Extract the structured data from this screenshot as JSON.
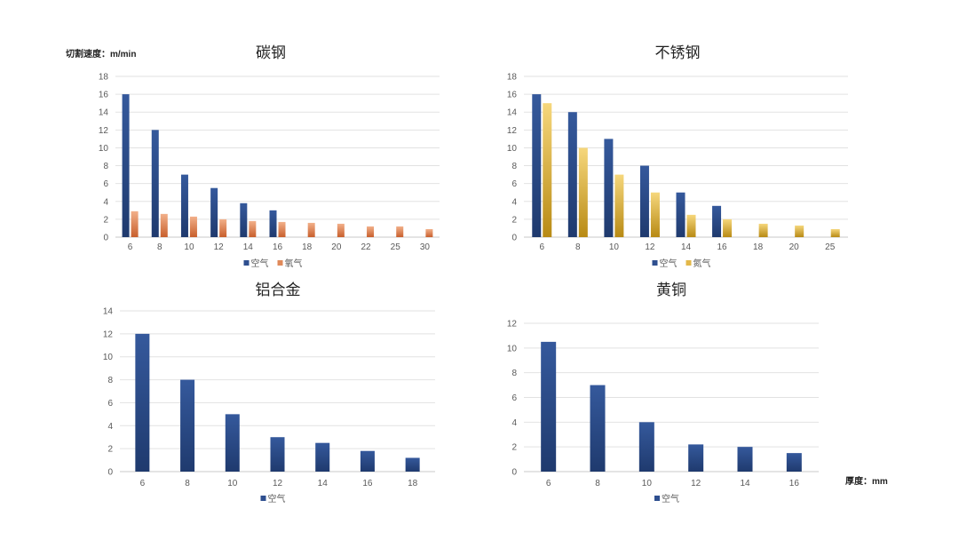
{
  "labels": {
    "speed_unit": "切割速度：m/min",
    "thickness_unit": "厚度：mm"
  },
  "colors": {
    "air": "#2e4f8f",
    "oxygen": "#e08a5a",
    "nitrogen": "#e3b84a"
  },
  "chart_data": [
    {
      "type": "bar",
      "title": "碳钢",
      "categories": [
        "6",
        "8",
        "10",
        "12",
        "14",
        "16",
        "18",
        "20",
        "22",
        "25",
        "30"
      ],
      "series": [
        {
          "name": "空气",
          "values": [
            16,
            12,
            7,
            5.5,
            3.8,
            3,
            null,
            null,
            null,
            null,
            null
          ],
          "color_key": "air"
        },
        {
          "name": "氧气",
          "values": [
            2.9,
            2.6,
            2.3,
            2,
            1.8,
            1.7,
            1.6,
            1.5,
            1.2,
            1.2,
            0.9
          ],
          "color_key": "oxygen"
        }
      ],
      "ylim": [
        0,
        18
      ],
      "yticks": [
        0,
        2,
        4,
        6,
        8,
        10,
        12,
        14,
        16,
        18
      ],
      "legend": "bottom",
      "grid": true
    },
    {
      "type": "bar",
      "title": "不锈钢",
      "categories": [
        "6",
        "8",
        "10",
        "12",
        "14",
        "16",
        "18",
        "20",
        "25"
      ],
      "series": [
        {
          "name": "空气",
          "values": [
            16,
            14,
            11,
            8,
            5,
            3.5,
            null,
            null,
            null
          ],
          "color_key": "air"
        },
        {
          "name": "氮气",
          "values": [
            15,
            10,
            7,
            5,
            2.5,
            2,
            1.5,
            1.3,
            0.9
          ],
          "color_key": "nitrogen"
        }
      ],
      "ylim": [
        0,
        18
      ],
      "yticks": [
        0,
        2,
        4,
        6,
        8,
        10,
        12,
        14,
        16,
        18
      ],
      "legend": "bottom",
      "grid": true
    },
    {
      "type": "bar",
      "title": "铝合金",
      "categories": [
        "6",
        "8",
        "10",
        "12",
        "14",
        "16",
        "18"
      ],
      "series": [
        {
          "name": "空气",
          "values": [
            12,
            8,
            5,
            3,
            2.5,
            1.8,
            1.2
          ],
          "color_key": "air"
        }
      ],
      "ylim": [
        0,
        14
      ],
      "yticks": [
        0,
        2,
        4,
        6,
        8,
        10,
        12,
        14
      ],
      "legend": "bottom",
      "grid": true
    },
    {
      "type": "bar",
      "title": "黄铜",
      "categories": [
        "6",
        "8",
        "10",
        "12",
        "14",
        "16"
      ],
      "series": [
        {
          "name": "空气",
          "values": [
            10.5,
            7,
            4,
            2.2,
            2,
            1.5
          ],
          "color_key": "air"
        }
      ],
      "ylim": [
        0,
        12
      ],
      "yticks": [
        0,
        2,
        4,
        6,
        8,
        10,
        12
      ],
      "legend": "bottom",
      "grid": true
    }
  ]
}
